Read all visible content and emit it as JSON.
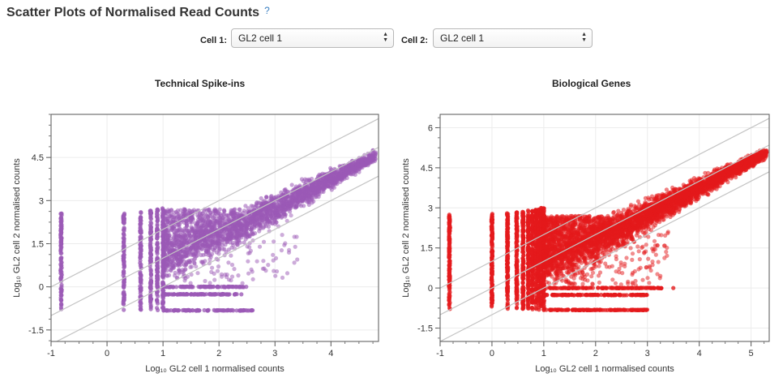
{
  "header": {
    "title": "Scatter Plots of Normalised Read Counts",
    "help_label": "?"
  },
  "selectors": [
    {
      "label": "Cell 1:",
      "value": "GL2 cell 1"
    },
    {
      "label": "Cell 2:",
      "value": "GL2 cell 1"
    }
  ],
  "chart_data": [
    {
      "type": "scatter",
      "title": "Technical Spike-ins",
      "xlabel": "Log₁₀ GL2 cell 1 normalised counts",
      "ylabel": "Log₁₀ GL2 cell 2 normalised counts",
      "xlim": [
        -1,
        4.85
      ],
      "ylim": [
        -1.9,
        6.0
      ],
      "xticks": [
        -1,
        0,
        1,
        2,
        3,
        4
      ],
      "yticks": [
        -1.5,
        0,
        1.5,
        3,
        4.5
      ],
      "ytick_labels": [
        "-1.5",
        "0",
        "1.5",
        "3",
        "4.5"
      ],
      "color": "#9b59b6",
      "grid": true,
      "reference_lines_offsets": [
        1,
        0,
        -1
      ],
      "series": [
        {
          "values": {
            "x_columns": [
              -0.82,
              0.3,
              0.6,
              0.78,
              0.9,
              1.0
            ],
            "column_y_top": [
              2.55,
              2.55,
              2.6,
              2.65,
              2.7,
              2.75
            ],
            "floor_rows_y": [
              -0.82,
              0,
              -0.26
            ],
            "floor_row_x_end": [
              2.6,
              2.5,
              2.35
            ],
            "cloud_x_range": [
              1.0,
              4.8
            ],
            "cloud_trend": "y = x - 0.2",
            "extra_points": [
              [
                1.9,
                -0.26
              ],
              [
                2.4,
                -0.26
              ],
              [
                2.6,
                -0.82
              ],
              [
                4.75,
                4.75
              ]
            ]
          }
        }
      ]
    },
    {
      "type": "scatter",
      "title": "Biological Genes",
      "xlabel": "Log₁₀ GL2 cell 1 normalised counts",
      "ylabel": "Log₁₀ GL2 cell 2 normalised counts",
      "xlim": [
        -1,
        5.35
      ],
      "ylim": [
        -2.0,
        6.5
      ],
      "xticks": [
        -1,
        0,
        1,
        2,
        3,
        4,
        5
      ],
      "yticks": [
        -1.5,
        0,
        1.5,
        3,
        4.5,
        6
      ],
      "ytick_labels": [
        "-1.5",
        "0",
        "1.5",
        "3",
        "4.5",
        "6"
      ],
      "color": "#e41a1c",
      "grid": true,
      "reference_lines_offsets": [
        1,
        0,
        -1
      ],
      "series": [
        {
          "values": {
            "x_columns": [
              -0.82,
              0,
              0.3,
              0.48,
              0.6,
              0.7,
              0.78,
              0.85,
              0.9,
              0.95,
              1.0
            ],
            "column_y_top": [
              2.75,
              2.8,
              2.8,
              2.85,
              2.85,
              2.9,
              2.9,
              2.95,
              2.95,
              3.0,
              3.0
            ],
            "floor_rows_y": [
              -0.82,
              0,
              -0.26
            ],
            "floor_row_x_end": [
              3.0,
              3.3,
              3.0
            ],
            "cloud_x_range": [
              1.0,
              5.3
            ],
            "cloud_trend": "y = x - 0.2",
            "extra_points": [
              [
                3.5,
                0
              ],
              [
                2.9,
                -0.26
              ],
              [
                5.2,
                5.1
              ]
            ]
          }
        }
      ]
    }
  ]
}
